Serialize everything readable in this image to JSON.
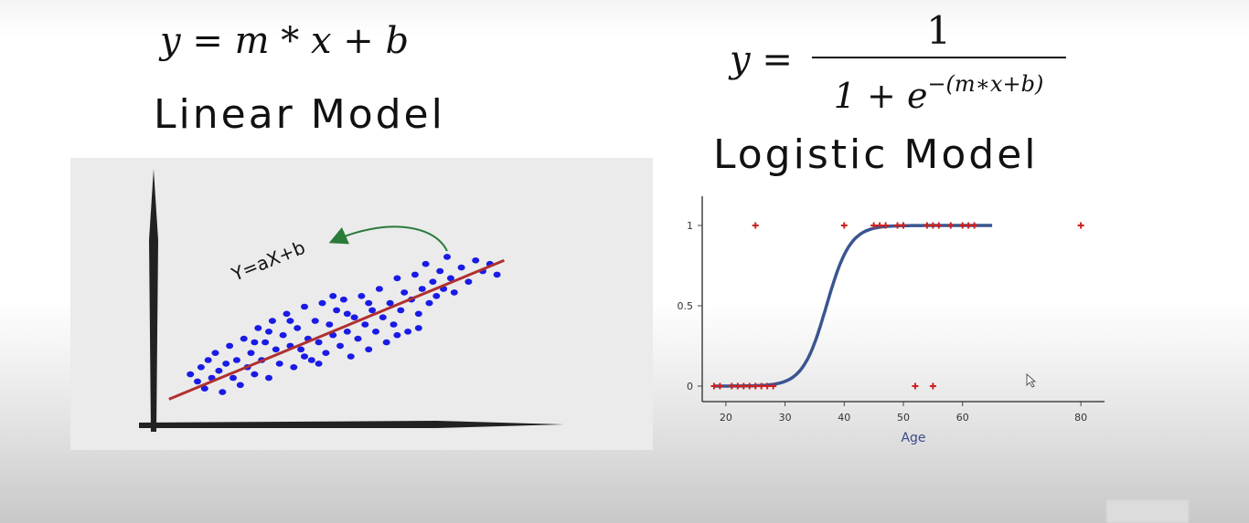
{
  "linear": {
    "formula": {
      "y": "y",
      "eq": " = ",
      "m": "m",
      "op1": " * ",
      "x": "x",
      "op2": " + ",
      "b": "b"
    },
    "title": "Linear Model",
    "line_label": "Y=aX+b",
    "colors": {
      "points": "#1a1ae6",
      "line": "#b03030",
      "arrow": "#2a7a3a",
      "axes": "#222222",
      "panel": "#ebebeb"
    }
  },
  "logistic": {
    "formula": {
      "y": "y",
      "eq": " = ",
      "numerator": "1",
      "den_base": "1 + e",
      "den_exp": "−(m∗x+b)"
    },
    "title": "Logistic Model",
    "colors": {
      "points": "#cc2222",
      "curve": "#3a5590",
      "axes": "#444444",
      "label": "#3a4a8a"
    }
  },
  "chart_data": [
    {
      "type": "scatter",
      "title": "",
      "xlabel": "",
      "ylabel": "",
      "annotation": "Y=aX+b",
      "fit_line": {
        "from": [
          0.02,
          0.08
        ],
        "to": [
          0.96,
          0.86
        ]
      },
      "points": [
        [
          0.08,
          0.22
        ],
        [
          0.1,
          0.18
        ],
        [
          0.11,
          0.26
        ],
        [
          0.12,
          0.14
        ],
        [
          0.13,
          0.3
        ],
        [
          0.14,
          0.2
        ],
        [
          0.15,
          0.34
        ],
        [
          0.16,
          0.24
        ],
        [
          0.17,
          0.12
        ],
        [
          0.18,
          0.28
        ],
        [
          0.19,
          0.38
        ],
        [
          0.2,
          0.2
        ],
        [
          0.21,
          0.3
        ],
        [
          0.22,
          0.16
        ],
        [
          0.23,
          0.42
        ],
        [
          0.24,
          0.26
        ],
        [
          0.25,
          0.34
        ],
        [
          0.26,
          0.22
        ],
        [
          0.27,
          0.48
        ],
        [
          0.28,
          0.3
        ],
        [
          0.29,
          0.4
        ],
        [
          0.3,
          0.2
        ],
        [
          0.31,
          0.52
        ],
        [
          0.32,
          0.36
        ],
        [
          0.33,
          0.28
        ],
        [
          0.34,
          0.44
        ],
        [
          0.35,
          0.56
        ],
        [
          0.36,
          0.38
        ],
        [
          0.37,
          0.26
        ],
        [
          0.38,
          0.48
        ],
        [
          0.39,
          0.36
        ],
        [
          0.4,
          0.6
        ],
        [
          0.41,
          0.42
        ],
        [
          0.42,
          0.3
        ],
        [
          0.43,
          0.52
        ],
        [
          0.44,
          0.4
        ],
        [
          0.45,
          0.62
        ],
        [
          0.46,
          0.34
        ],
        [
          0.47,
          0.5
        ],
        [
          0.48,
          0.44
        ],
        [
          0.49,
          0.58
        ],
        [
          0.5,
          0.38
        ],
        [
          0.51,
          0.64
        ],
        [
          0.52,
          0.46
        ],
        [
          0.53,
          0.32
        ],
        [
          0.54,
          0.54
        ],
        [
          0.55,
          0.42
        ],
        [
          0.56,
          0.66
        ],
        [
          0.57,
          0.5
        ],
        [
          0.58,
          0.36
        ],
        [
          0.59,
          0.58
        ],
        [
          0.6,
          0.46
        ],
        [
          0.61,
          0.7
        ],
        [
          0.62,
          0.54
        ],
        [
          0.63,
          0.4
        ],
        [
          0.64,
          0.62
        ],
        [
          0.65,
          0.5
        ],
        [
          0.66,
          0.76
        ],
        [
          0.67,
          0.58
        ],
        [
          0.68,
          0.68
        ],
        [
          0.69,
          0.46
        ],
        [
          0.7,
          0.64
        ],
        [
          0.71,
          0.78
        ],
        [
          0.72,
          0.56
        ],
        [
          0.73,
          0.7
        ],
        [
          0.74,
          0.84
        ],
        [
          0.75,
          0.62
        ],
        [
          0.76,
          0.74
        ],
        [
          0.77,
          0.66
        ],
        [
          0.78,
          0.8
        ],
        [
          0.79,
          0.7
        ],
        [
          0.8,
          0.88
        ],
        [
          0.81,
          0.76
        ],
        [
          0.82,
          0.68
        ],
        [
          0.84,
          0.82
        ],
        [
          0.86,
          0.74
        ],
        [
          0.88,
          0.86
        ],
        [
          0.9,
          0.8
        ],
        [
          0.92,
          0.84
        ],
        [
          0.94,
          0.78
        ],
        [
          0.3,
          0.46
        ],
        [
          0.36,
          0.52
        ],
        [
          0.44,
          0.28
        ],
        [
          0.52,
          0.56
        ],
        [
          0.58,
          0.62
        ],
        [
          0.66,
          0.44
        ],
        [
          0.72,
          0.48
        ],
        [
          0.26,
          0.4
        ],
        [
          0.4,
          0.32
        ],
        [
          0.48,
          0.66
        ]
      ]
    },
    {
      "type": "scatter",
      "title": "",
      "xlabel": "Age",
      "ylabel": "",
      "xlim": [
        16,
        84
      ],
      "ylim": [
        0,
        1
      ],
      "xticks": [
        20,
        30,
        40,
        50,
        60,
        80
      ],
      "yticks": [
        0,
        0.5,
        1
      ],
      "xtick_labels": [
        "20",
        "30",
        "40",
        "50",
        "60",
        "80"
      ],
      "ytick_labels": [
        "0",
        "0.5",
        "1"
      ],
      "points": [
        [
          18,
          0
        ],
        [
          19,
          0
        ],
        [
          21,
          0
        ],
        [
          22,
          0
        ],
        [
          23,
          0
        ],
        [
          24,
          0
        ],
        [
          25,
          0
        ],
        [
          26,
          0
        ],
        [
          27,
          0
        ],
        [
          28,
          0
        ],
        [
          52,
          0
        ],
        [
          55,
          0
        ],
        [
          25,
          1
        ],
        [
          40,
          1
        ],
        [
          45,
          1
        ],
        [
          46,
          1
        ],
        [
          47,
          1
        ],
        [
          49,
          1
        ],
        [
          50,
          1
        ],
        [
          54,
          1
        ],
        [
          55,
          1
        ],
        [
          56,
          1
        ],
        [
          58,
          1
        ],
        [
          60,
          1
        ],
        [
          61,
          1
        ],
        [
          62,
          1
        ],
        [
          80,
          1
        ]
      ],
      "curve": {
        "type": "logistic",
        "midpoint": 37,
        "steepness": 0.5,
        "x_range": [
          18,
          65
        ]
      }
    }
  ]
}
